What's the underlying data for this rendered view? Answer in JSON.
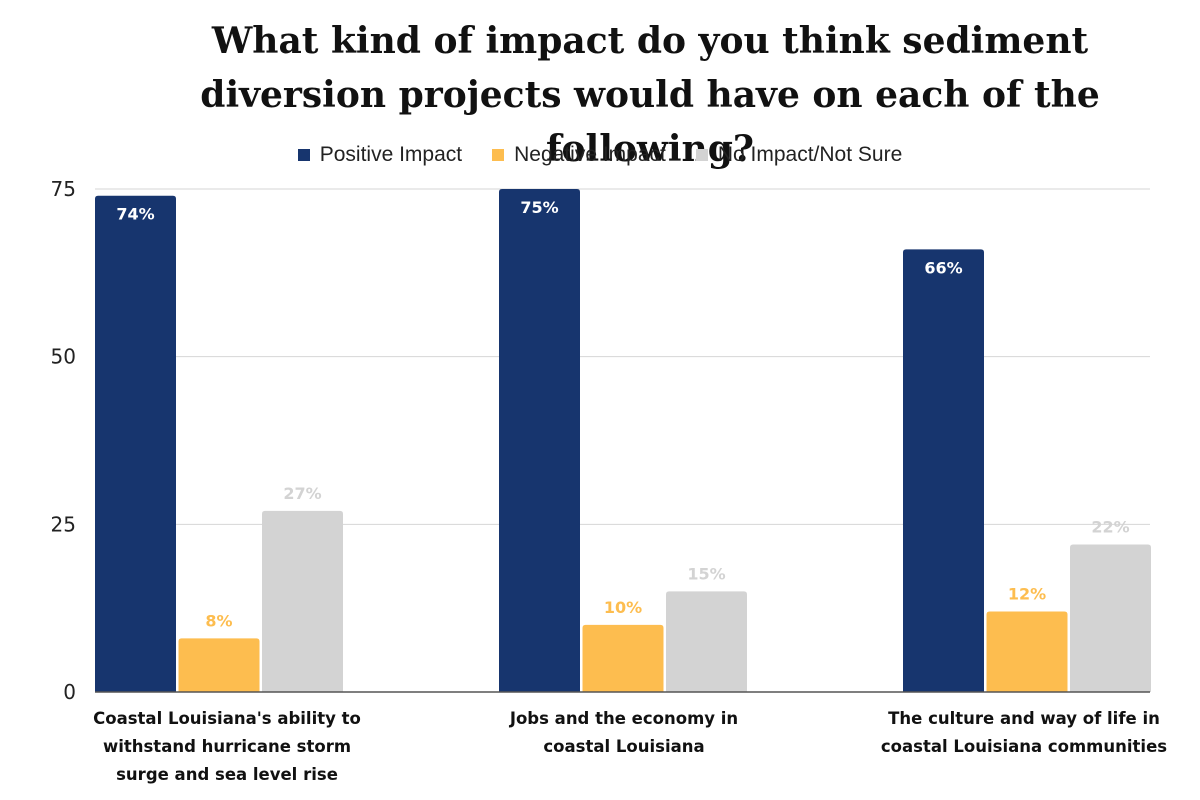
{
  "chart_data": {
    "type": "bar",
    "title": "What kind of impact do you think sediment diversion projects would have on each of the following?",
    "categories": [
      "Coastal Louisiana's ability to withstand hurricane storm surge and sea level rise",
      "Jobs and the economy in coastal Louisiana",
      "The culture and way of life in coastal Louisiana communities"
    ],
    "series": [
      {
        "name": "Positive Impact",
        "color": "#17356e",
        "label_color": "#ffffff",
        "values": [
          74,
          75,
          66
        ],
        "labels": [
          "74%",
          "75%",
          "66%"
        ]
      },
      {
        "name": "Negative Impact",
        "color": "#fdbd4f",
        "label_color": "#fdbd4f",
        "values": [
          8,
          10,
          12
        ],
        "labels": [
          "8%",
          "10%",
          "12%"
        ]
      },
      {
        "name": "No Impact/Not Sure",
        "color": "#d3d3d3",
        "label_color": "#d3d3d3",
        "values": [
          27,
          15,
          22
        ],
        "labels": [
          "27%",
          "15%",
          "22%"
        ]
      }
    ],
    "ylim": [
      0,
      75
    ],
    "yticks": [
      0,
      25,
      50,
      75
    ],
    "ytick_labels": [
      "0",
      "25",
      "50",
      "75"
    ],
    "grid": true,
    "legend_position": "top-center"
  }
}
